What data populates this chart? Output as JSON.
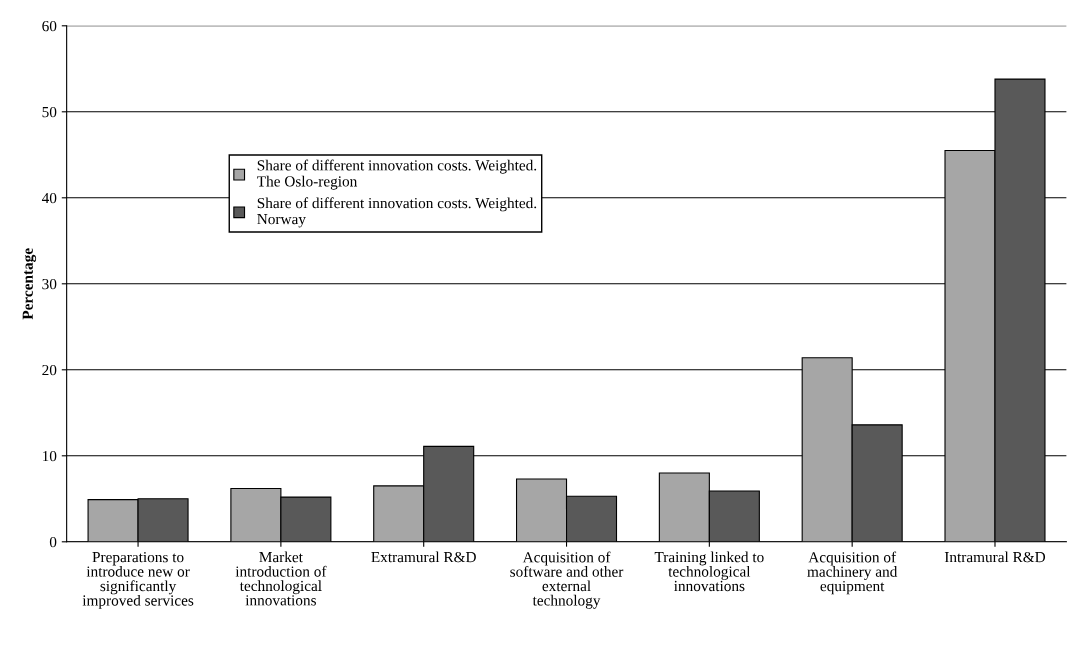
{
  "chart_data": {
    "type": "bar",
    "ylabel": "Percentage",
    "categories": [
      "Preparations to\nintroduce new or\nsignificantly\nimproved services",
      "Market\nintroduction of\ntechnological\ninnovations",
      "Extramural R&D",
      "Acquisition of\nsoftware and other\nexternal\ntechnology",
      "Training linked to\ntechnological\ninnovations",
      "Acquisition of\nmachinery and\nequipment",
      "Intramural R&D"
    ],
    "series": [
      {
        "name": "Share of different innovation costs. Weighted.\nThe Oslo-region",
        "color": "#a6a6a6",
        "values": [
          4.9,
          6.2,
          6.5,
          7.3,
          8.0,
          21.4,
          45.5
        ]
      },
      {
        "name": "Share of different innovation costs. Weighted.\nNorway",
        "color": "#595959",
        "values": [
          5.0,
          5.2,
          11.1,
          5.3,
          5.9,
          13.6,
          53.8
        ]
      }
    ],
    "ylim": [
      0,
      60
    ],
    "yticks": [
      0,
      10,
      20,
      30,
      40,
      50,
      60
    ],
    "grid": "y",
    "legend": "center left"
  }
}
